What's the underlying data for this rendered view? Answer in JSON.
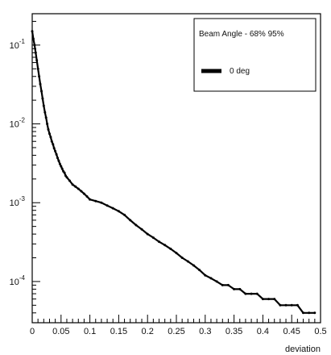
{
  "chart_data": {
    "type": "line",
    "title": "",
    "xlabel": "deviation",
    "ylabel": "",
    "xlim": [
      0,
      0.5
    ],
    "ylim": [
      3e-05,
      0.25
    ],
    "yscale": "log",
    "grid": false,
    "legend_position": "top-right",
    "x_ticks": [
      "0",
      "0.05",
      "0.1",
      "0.15",
      "0.2",
      "0.25",
      "0.3",
      "0.35",
      "0.4",
      "0.45",
      "0.5"
    ],
    "y_ticks": [
      {
        "base": "10",
        "exp": "-4",
        "value": 0.0001
      },
      {
        "base": "10",
        "exp": "-3",
        "value": 0.001
      },
      {
        "base": "10",
        "exp": "-2",
        "value": 0.01
      },
      {
        "base": "10",
        "exp": "-1",
        "value": 0.1
      }
    ],
    "legend": {
      "header": "Beam Angle - 68%  95%",
      "entry_label": "0 deg"
    },
    "series": [
      {
        "name": "0 deg",
        "color": "#000000",
        "points": [
          {
            "x": 0.0,
            "y": 0.15
          },
          {
            "x": 0.002,
            "y": 0.12
          },
          {
            "x": 0.004,
            "y": 0.1
          },
          {
            "x": 0.006,
            "y": 0.08
          },
          {
            "x": 0.008,
            "y": 0.064
          },
          {
            "x": 0.01,
            "y": 0.05
          },
          {
            "x": 0.012,
            "y": 0.04
          },
          {
            "x": 0.014,
            "y": 0.032
          },
          {
            "x": 0.016,
            "y": 0.026
          },
          {
            "x": 0.018,
            "y": 0.021
          },
          {
            "x": 0.02,
            "y": 0.017
          },
          {
            "x": 0.022,
            "y": 0.014
          },
          {
            "x": 0.024,
            "y": 0.012
          },
          {
            "x": 0.026,
            "y": 0.01
          },
          {
            "x": 0.028,
            "y": 0.0085
          },
          {
            "x": 0.03,
            "y": 0.0075
          },
          {
            "x": 0.032,
            "y": 0.0068
          },
          {
            "x": 0.034,
            "y": 0.006
          },
          {
            "x": 0.036,
            "y": 0.0055
          },
          {
            "x": 0.038,
            "y": 0.0049
          },
          {
            "x": 0.04,
            "y": 0.0045
          },
          {
            "x": 0.042,
            "y": 0.0041
          },
          {
            "x": 0.044,
            "y": 0.0037
          },
          {
            "x": 0.046,
            "y": 0.0034
          },
          {
            "x": 0.048,
            "y": 0.0031
          },
          {
            "x": 0.05,
            "y": 0.0029
          },
          {
            "x": 0.052,
            "y": 0.0027
          },
          {
            "x": 0.054,
            "y": 0.0025
          },
          {
            "x": 0.056,
            "y": 0.0024
          },
          {
            "x": 0.058,
            "y": 0.0022
          },
          {
            "x": 0.06,
            "y": 0.0021
          },
          {
            "x": 0.065,
            "y": 0.0019
          },
          {
            "x": 0.07,
            "y": 0.0017
          },
          {
            "x": 0.075,
            "y": 0.0016
          },
          {
            "x": 0.08,
            "y": 0.0015
          },
          {
            "x": 0.085,
            "y": 0.0014
          },
          {
            "x": 0.09,
            "y": 0.0013
          },
          {
            "x": 0.095,
            "y": 0.0012
          },
          {
            "x": 0.1,
            "y": 0.0011
          },
          {
            "x": 0.11,
            "y": 0.00105
          },
          {
            "x": 0.12,
            "y": 0.001
          },
          {
            "x": 0.13,
            "y": 0.00092
          },
          {
            "x": 0.14,
            "y": 0.00085
          },
          {
            "x": 0.15,
            "y": 0.00078
          },
          {
            "x": 0.16,
            "y": 0.0007
          },
          {
            "x": 0.17,
            "y": 0.0006
          },
          {
            "x": 0.18,
            "y": 0.00052
          },
          {
            "x": 0.19,
            "y": 0.00046
          },
          {
            "x": 0.2,
            "y": 0.0004
          },
          {
            "x": 0.21,
            "y": 0.00036
          },
          {
            "x": 0.22,
            "y": 0.00032
          },
          {
            "x": 0.23,
            "y": 0.00029
          },
          {
            "x": 0.24,
            "y": 0.00026
          },
          {
            "x": 0.25,
            "y": 0.00023
          },
          {
            "x": 0.26,
            "y": 0.0002
          },
          {
            "x": 0.27,
            "y": 0.00018
          },
          {
            "x": 0.28,
            "y": 0.00016
          },
          {
            "x": 0.29,
            "y": 0.00014
          },
          {
            "x": 0.3,
            "y": 0.00012
          },
          {
            "x": 0.31,
            "y": 0.00011
          },
          {
            "x": 0.32,
            "y": 0.0001
          },
          {
            "x": 0.33,
            "y": 9e-05
          },
          {
            "x": 0.34,
            "y": 9e-05
          },
          {
            "x": 0.35,
            "y": 8e-05
          },
          {
            "x": 0.36,
            "y": 8e-05
          },
          {
            "x": 0.37,
            "y": 7e-05
          },
          {
            "x": 0.38,
            "y": 7e-05
          },
          {
            "x": 0.39,
            "y": 7e-05
          },
          {
            "x": 0.4,
            "y": 6e-05
          },
          {
            "x": 0.41,
            "y": 6e-05
          },
          {
            "x": 0.42,
            "y": 6e-05
          },
          {
            "x": 0.43,
            "y": 5e-05
          },
          {
            "x": 0.44,
            "y": 5e-05
          },
          {
            "x": 0.45,
            "y": 5e-05
          },
          {
            "x": 0.46,
            "y": 5e-05
          },
          {
            "x": 0.47,
            "y": 4e-05
          },
          {
            "x": 0.48,
            "y": 4e-05
          },
          {
            "x": 0.49,
            "y": 4e-05
          }
        ]
      }
    ]
  }
}
